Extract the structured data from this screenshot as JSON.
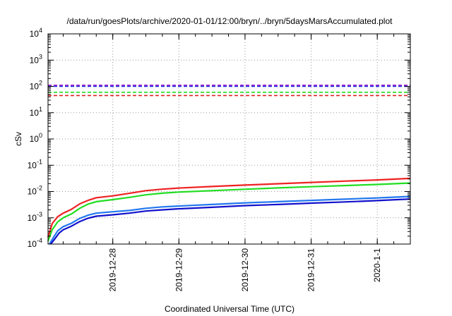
{
  "chart_data": {
    "type": "line",
    "title": "/data/run/goesPlots/archive/2020-01-01/12:00/bryn/../bryn/5daysMarsAccumulated.plot",
    "xlabel": "Coordinated Universal Time (UTC)",
    "ylabel": "cSv",
    "yscale": "log",
    "ylim": [
      0.0001,
      10000
    ],
    "xlim": [
      "2019-12-27 00:30",
      "2020-01-01 12:00"
    ],
    "x_ticks": [
      {
        "label": "2019-12-28",
        "value": "2019-12-28 00:00"
      },
      {
        "label": "2019-12-29",
        "value": "2019-12-29 00:00"
      },
      {
        "label": "2019-12-30",
        "value": "2019-12-30 00:00"
      },
      {
        "label": "2019-12-31",
        "value": "2019-12-31 00:00"
      },
      {
        "label": "2020-1-1",
        "value": "2020-01-01 00:00"
      }
    ],
    "y_ticks": [
      {
        "base": "10",
        "exp": "-4",
        "value": 0.0001
      },
      {
        "base": "10",
        "exp": "-3",
        "value": 0.001
      },
      {
        "base": "10",
        "exp": "-2",
        "value": 0.01
      },
      {
        "base": "10",
        "exp": "-1",
        "value": 0.1
      },
      {
        "base": "10",
        "exp": "0",
        "value": 1
      },
      {
        "base": "10",
        "exp": "1",
        "value": 10
      },
      {
        "base": "10",
        "exp": "2",
        "value": 100
      },
      {
        "base": "10",
        "exp": "3",
        "value": 1000
      },
      {
        "base": "10",
        "exp": "4",
        "value": 10000
      }
    ],
    "grid": true,
    "thresholds": [
      {
        "value": 110,
        "color": "#8800cc"
      },
      {
        "value": 100,
        "color": "#2233dd"
      },
      {
        "value": 60,
        "color": "#22dd22"
      },
      {
        "value": 45,
        "color": "#dd2222"
      }
    ],
    "series": [
      {
        "color": "#ee2222",
        "points": [
          [
            "2019-12-27 00:30",
            0.00018
          ],
          [
            "2019-12-27 02:00",
            0.0006
          ],
          [
            "2019-12-27 04:00",
            0.0011
          ],
          [
            "2019-12-27 06:00",
            0.0015
          ],
          [
            "2019-12-27 09:00",
            0.0021
          ],
          [
            "2019-12-27 12:00",
            0.0034
          ],
          [
            "2019-12-27 15:00",
            0.0046
          ],
          [
            "2019-12-27 18:00",
            0.0058
          ],
          [
            "2019-12-28 00:00",
            0.0068
          ],
          [
            "2019-12-28 06:00",
            0.0085
          ],
          [
            "2019-12-28 12:00",
            0.0108
          ],
          [
            "2019-12-28 18:00",
            0.0123
          ],
          [
            "2019-12-29 00:00",
            0.0135
          ],
          [
            "2019-12-29 12:00",
            0.0155
          ],
          [
            "2019-12-30 00:00",
            0.0176
          ],
          [
            "2019-12-30 12:00",
            0.0197
          ],
          [
            "2019-12-31 00:00",
            0.0222
          ],
          [
            "2019-12-31 12:00",
            0.0248
          ],
          [
            "2020-01-01 00:00",
            0.0275
          ],
          [
            "2020-01-01 12:00",
            0.0315
          ]
        ]
      },
      {
        "color": "#22dd22",
        "points": [
          [
            "2019-12-27 00:30",
            0.00013
          ],
          [
            "2019-12-27 02:00",
            0.00035
          ],
          [
            "2019-12-27 04:00",
            0.0007
          ],
          [
            "2019-12-27 06:00",
            0.001
          ],
          [
            "2019-12-27 09:00",
            0.0014
          ],
          [
            "2019-12-27 12:00",
            0.0023
          ],
          [
            "2019-12-27 15:00",
            0.0033
          ],
          [
            "2019-12-27 18:00",
            0.0041
          ],
          [
            "2019-12-28 00:00",
            0.0049
          ],
          [
            "2019-12-28 06:00",
            0.006
          ],
          [
            "2019-12-28 12:00",
            0.0075
          ],
          [
            "2019-12-28 18:00",
            0.0086
          ],
          [
            "2019-12-29 00:00",
            0.0095
          ],
          [
            "2019-12-29 12:00",
            0.0108
          ],
          [
            "2019-12-30 00:00",
            0.0122
          ],
          [
            "2019-12-30 12:00",
            0.0137
          ],
          [
            "2019-12-31 00:00",
            0.0152
          ],
          [
            "2019-12-31 12:00",
            0.0168
          ],
          [
            "2020-01-01 00:00",
            0.0186
          ],
          [
            "2020-01-01 12:00",
            0.021
          ]
        ]
      },
      {
        "color": "#2277ee",
        "points": [
          [
            "2019-12-27 01:00",
            0.0001
          ],
          [
            "2019-12-27 02:30",
            0.00018
          ],
          [
            "2019-12-27 04:00",
            0.00032
          ],
          [
            "2019-12-27 06:00",
            0.00046
          ],
          [
            "2019-12-27 09:00",
            0.00062
          ],
          [
            "2019-12-27 12:00",
            0.00095
          ],
          [
            "2019-12-27 15:00",
            0.00125
          ],
          [
            "2019-12-27 18:00",
            0.0015
          ],
          [
            "2019-12-28 00:00",
            0.0017
          ],
          [
            "2019-12-28 06:00",
            0.0019
          ],
          [
            "2019-12-28 12:00",
            0.0023
          ],
          [
            "2019-12-28 18:00",
            0.0026
          ],
          [
            "2019-12-29 00:00",
            0.0028
          ],
          [
            "2019-12-29 12:00",
            0.0032
          ],
          [
            "2019-12-30 00:00",
            0.0037
          ],
          [
            "2019-12-30 12:00",
            0.0041
          ],
          [
            "2019-12-31 00:00",
            0.0046
          ],
          [
            "2019-12-31 12:00",
            0.0051
          ],
          [
            "2020-01-01 00:00",
            0.0057
          ],
          [
            "2020-01-01 12:00",
            0.0065
          ]
        ]
      },
      {
        "color": "#1111cc",
        "points": [
          [
            "2019-12-27 01:30",
            0.0001
          ],
          [
            "2019-12-27 03:00",
            0.00016
          ],
          [
            "2019-12-27 04:30",
            0.00026
          ],
          [
            "2019-12-27 06:00",
            0.00035
          ],
          [
            "2019-12-27 09:00",
            0.00048
          ],
          [
            "2019-12-27 12:00",
            0.00072
          ],
          [
            "2019-12-27 15:00",
            0.00096
          ],
          [
            "2019-12-27 18:00",
            0.00115
          ],
          [
            "2019-12-28 00:00",
            0.0013
          ],
          [
            "2019-12-28 06:00",
            0.0015
          ],
          [
            "2019-12-28 12:00",
            0.0018
          ],
          [
            "2019-12-28 18:00",
            0.002
          ],
          [
            "2019-12-29 00:00",
            0.0022
          ],
          [
            "2019-12-29 12:00",
            0.0025
          ],
          [
            "2019-12-30 00:00",
            0.0029
          ],
          [
            "2019-12-30 12:00",
            0.0032
          ],
          [
            "2019-12-31 00:00",
            0.0036
          ],
          [
            "2019-12-31 12:00",
            0.004
          ],
          [
            "2020-01-01 00:00",
            0.0045
          ],
          [
            "2020-01-01 12:00",
            0.0052
          ]
        ]
      }
    ]
  }
}
